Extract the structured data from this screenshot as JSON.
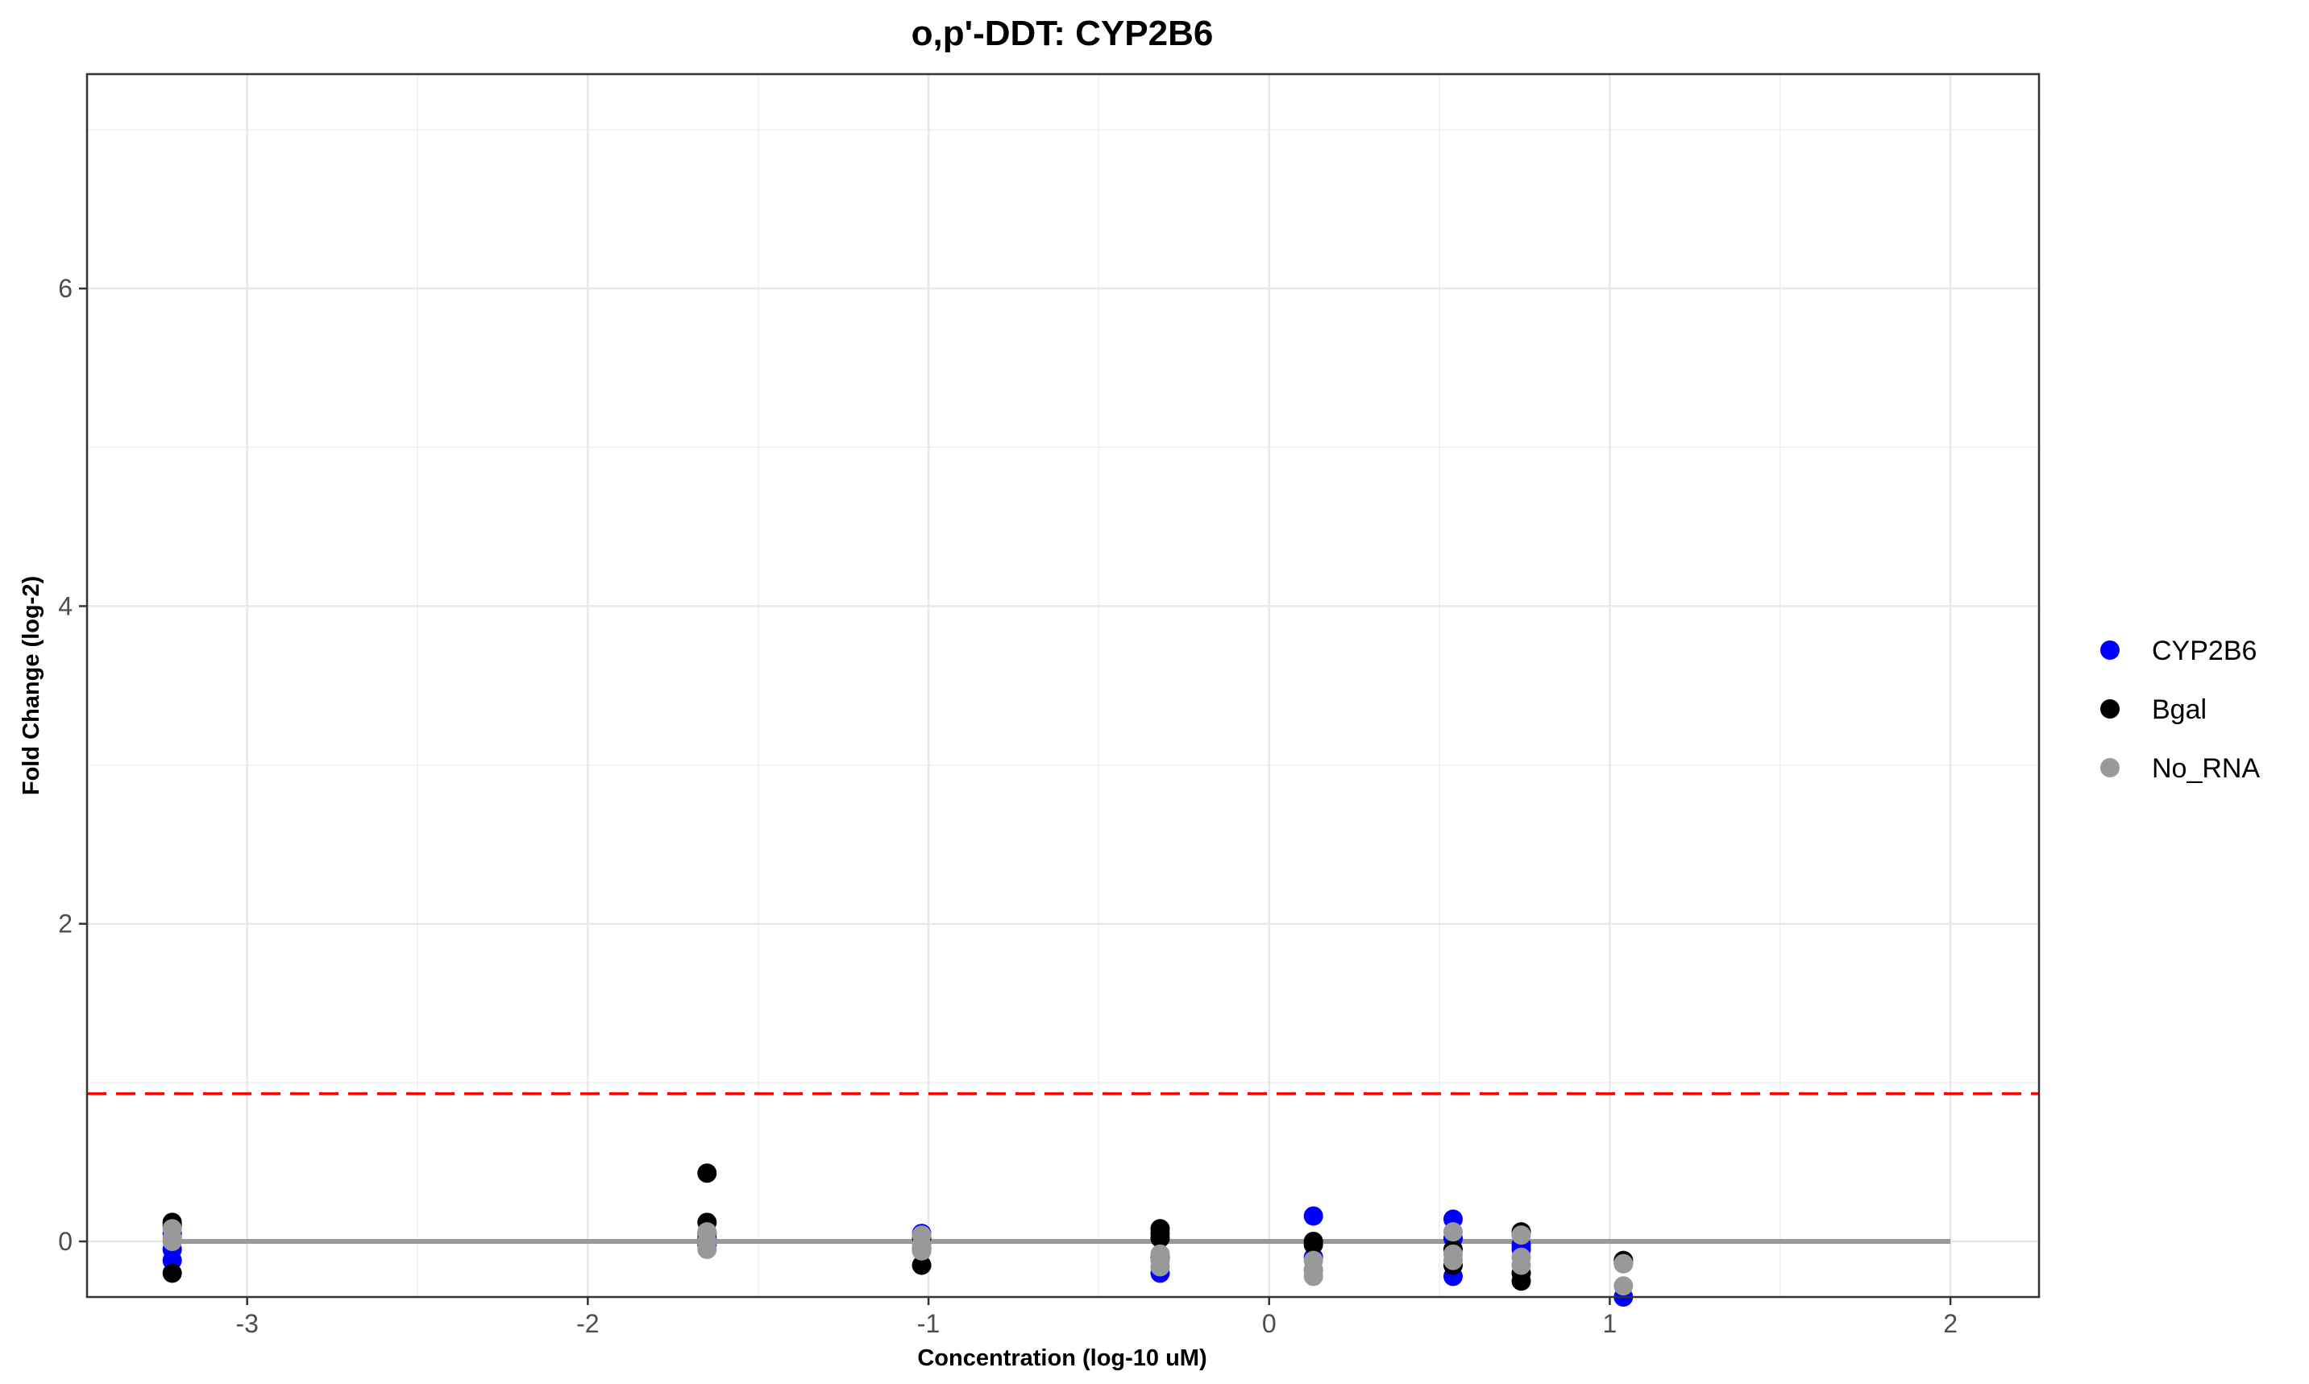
{
  "chart_data": {
    "type": "scatter",
    "title": "o,p'-DDT: CYP2B6",
    "xlabel": "Concentration (log-10 uM)",
    "ylabel": "Fold Change (log-2)",
    "xlim": [
      -3.47,
      2.26
    ],
    "ylim": [
      -0.35,
      7.35
    ],
    "x_ticks": [
      -3,
      -2,
      -1,
      0,
      1,
      2
    ],
    "x_tick_labels": [
      "-3",
      "-2",
      "-1",
      "0",
      "1",
      "2"
    ],
    "y_ticks": [
      0,
      2,
      4,
      6
    ],
    "y_tick_labels": [
      "0",
      "2",
      "4",
      "6"
    ],
    "grid": true,
    "legend_position": "right",
    "threshold": {
      "y": 0.93,
      "color": "#ff0000",
      "style": "dashed"
    },
    "baseline": {
      "y": 0,
      "x_range": [
        -3.22,
        2.0
      ],
      "color": "#999999"
    },
    "series": [
      {
        "name": "CYP2B6",
        "color": "#0000ff",
        "points": [
          {
            "x": -3.22,
            "y": 0.05
          },
          {
            "x": -3.22,
            "y": -0.05
          },
          {
            "x": -3.22,
            "y": -0.12
          },
          {
            "x": -1.65,
            "y": 0.02
          },
          {
            "x": -1.65,
            "y": -0.02
          },
          {
            "x": -1.02,
            "y": 0.05
          },
          {
            "x": -1.02,
            "y": -0.05
          },
          {
            "x": -0.32,
            "y": -0.2
          },
          {
            "x": -0.32,
            "y": -0.1
          },
          {
            "x": 0.13,
            "y": 0.16
          },
          {
            "x": 0.13,
            "y": -0.1
          },
          {
            "x": 0.13,
            "y": -0.18
          },
          {
            "x": 0.54,
            "y": 0.14
          },
          {
            "x": 0.54,
            "y": -0.22
          },
          {
            "x": 0.54,
            "y": 0.02
          },
          {
            "x": 0.74,
            "y": -0.02
          },
          {
            "x": 0.74,
            "y": -0.05
          },
          {
            "x": 1.04,
            "y": -0.35
          },
          {
            "x": 1.04,
            "y": -0.14
          }
        ]
      },
      {
        "name": "Bgal",
        "color": "#000000",
        "points": [
          {
            "x": -3.22,
            "y": 0.12
          },
          {
            "x": -3.22,
            "y": 0.1
          },
          {
            "x": -3.22,
            "y": -0.2
          },
          {
            "x": -1.65,
            "y": 0.43
          },
          {
            "x": -1.65,
            "y": 0.12
          },
          {
            "x": -1.65,
            "y": 0.05
          },
          {
            "x": -1.02,
            "y": 0.02
          },
          {
            "x": -1.02,
            "y": -0.15
          },
          {
            "x": -0.32,
            "y": 0.08
          },
          {
            "x": -0.32,
            "y": 0.05
          },
          {
            "x": -0.32,
            "y": 0.02
          },
          {
            "x": 0.13,
            "y": 0.0
          },
          {
            "x": 0.13,
            "y": -0.02
          },
          {
            "x": 0.54,
            "y": -0.15
          },
          {
            "x": 0.54,
            "y": -0.05
          },
          {
            "x": 0.74,
            "y": 0.06
          },
          {
            "x": 0.74,
            "y": -0.2
          },
          {
            "x": 0.74,
            "y": -0.25
          },
          {
            "x": 1.04,
            "y": -0.12
          }
        ]
      },
      {
        "name": "No_RNA",
        "color": "#999999",
        "points": [
          {
            "x": -3.22,
            "y": 0.08
          },
          {
            "x": -3.22,
            "y": 0.02
          },
          {
            "x": -3.22,
            "y": 0.0
          },
          {
            "x": -1.65,
            "y": 0.06
          },
          {
            "x": -1.65,
            "y": 0.0
          },
          {
            "x": -1.65,
            "y": -0.05
          },
          {
            "x": -1.02,
            "y": 0.04
          },
          {
            "x": -1.02,
            "y": -0.02
          },
          {
            "x": -1.02,
            "y": -0.06
          },
          {
            "x": -0.32,
            "y": -0.08
          },
          {
            "x": -0.32,
            "y": -0.12
          },
          {
            "x": -0.32,
            "y": -0.16
          },
          {
            "x": 0.13,
            "y": -0.12
          },
          {
            "x": 0.13,
            "y": -0.18
          },
          {
            "x": 0.13,
            "y": -0.22
          },
          {
            "x": 0.54,
            "y": 0.06
          },
          {
            "x": 0.54,
            "y": -0.08
          },
          {
            "x": 0.54,
            "y": -0.12
          },
          {
            "x": 0.74,
            "y": 0.04
          },
          {
            "x": 0.74,
            "y": -0.1
          },
          {
            "x": 0.74,
            "y": -0.15
          },
          {
            "x": 1.04,
            "y": -0.14
          },
          {
            "x": 1.04,
            "y": -0.28
          }
        ]
      }
    ]
  }
}
